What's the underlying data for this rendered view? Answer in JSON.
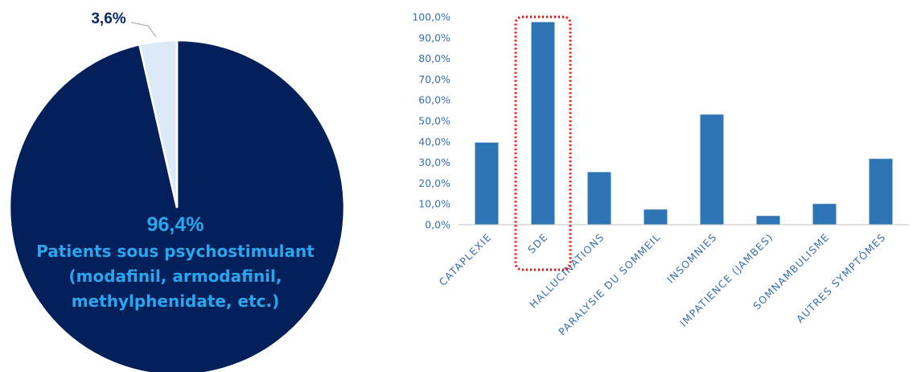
{
  "chart_data": [
    {
      "type": "pie",
      "slices": [
        {
          "label": "96,4%",
          "value": 96.4,
          "color": "#03205a"
        },
        {
          "label": "3,6%",
          "value": 3.6,
          "color": "#dce9f6"
        }
      ],
      "annotation_lines": [
        "Patients sous psychostimulant",
        "(modafinil, armodafinil,",
        "methylphenidate, etc.)"
      ]
    },
    {
      "type": "bar",
      "categories": [
        "CATAPLEXIE",
        "SDE",
        "HALLUCINATIONS",
        "PARALYSIE DU SOMMEIL",
        "INSOMNIES",
        "IMPATIENCE (JAMBES)",
        "SOMNAMBULISME",
        "AUTRES SYMPTÔMES"
      ],
      "values": [
        39.5,
        97.5,
        25.3,
        7.3,
        53.0,
        4.2,
        10.0,
        31.7
      ],
      "ylim": [
        0,
        100
      ],
      "yticks": [
        "0,0%",
        "10,0%",
        "20,0%",
        "30,0%",
        "40,0%",
        "50,0%",
        "60,0%",
        "70,0%",
        "80,0%",
        "90,0%",
        "100,0%"
      ],
      "highlight_category": "SDE",
      "bar_color": "#2e75b6",
      "highlight_color": "#ff0000"
    }
  ]
}
